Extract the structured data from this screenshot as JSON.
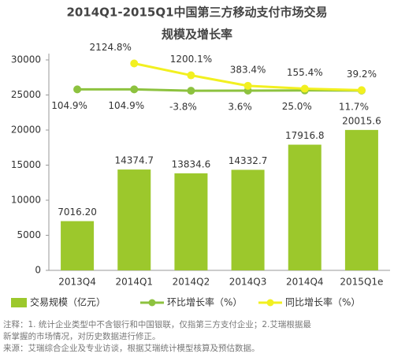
{
  "chart_data": {
    "type": "bar",
    "title": [
      "2014Q1-2015Q1中国第三方移动支付市场交易",
      "规模及增长率"
    ],
    "categories": [
      "2013Q4",
      "2014Q1",
      "2014Q2",
      "2014Q3",
      "2014Q4",
      "2015Q1e"
    ],
    "series": [
      {
        "name": "交易规模（亿元）",
        "type": "bar",
        "color": "#9cc82c",
        "values": [
          7016.2,
          14374.7,
          13834.6,
          14332.7,
          17916.8,
          20015.6
        ],
        "value_labels": [
          "7016.20",
          "14374.7",
          "13834.6",
          "14332.7",
          "17916.8",
          "20015.6"
        ]
      },
      {
        "name": "环比增长率（%）",
        "type": "line",
        "axis": "y2",
        "color": "#8dc23f",
        "values": [
          104.9,
          104.9,
          -3.8,
          3.6,
          25.0,
          11.7
        ],
        "value_labels": [
          "104.9%",
          "104.9%",
          "-3.8%",
          "3.6%",
          "25.0%",
          "11.7%"
        ]
      },
      {
        "name": "同比增长率（%）",
        "type": "line",
        "axis": "y2",
        "color": "#f2f020",
        "values": [
          null,
          2124.8,
          1200.1,
          383.4,
          155.4,
          39.2
        ],
        "value_labels": [
          null,
          "2124.8%",
          "1200.1%",
          "383.4%",
          "155.4%",
          "39.2%"
        ]
      }
    ],
    "ylim": [
      0,
      30000
    ],
    "yticks": [
      0,
      5000,
      10000,
      15000,
      20000,
      25000,
      30000
    ],
    "y2lim": [
      -14000,
      2400
    ],
    "grid": false,
    "notes": [
      "注释：1. 统计企业类型中不含银行和中国银联，仅指第三方支付企业；2.艾瑞根据最",
      "新掌握的市场情况，对历史数据进行修正。",
      "来源：艾瑞综合企业及专业访谈，根据艾瑞统计模型核算及预估数据。"
    ]
  }
}
